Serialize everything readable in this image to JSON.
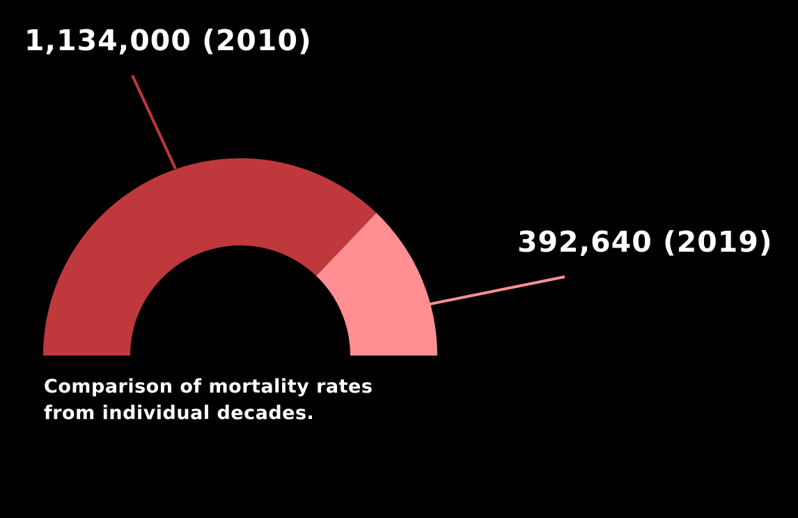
{
  "chart_data": {
    "type": "pie",
    "title": "",
    "slices": [
      {
        "label": "1,134,000 (2010)",
        "year": "2010",
        "value": 1134000,
        "color": "#bf383c"
      },
      {
        "label": "392,640 (2019)",
        "year": "2019",
        "value": 392640,
        "color": "#ff8f92"
      }
    ],
    "layout_style": "half-donut",
    "caption_lines": [
      "Comparison of mortality rates",
      "from individual decades."
    ]
  },
  "colors": {
    "background": "#000000",
    "slice_2010": "#bf383c",
    "slice_2019": "#ff8f92",
    "text": "#ffffff"
  }
}
